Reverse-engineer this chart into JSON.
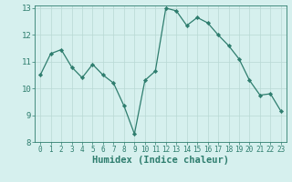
{
  "x": [
    0,
    1,
    2,
    3,
    4,
    5,
    6,
    7,
    8,
    9,
    10,
    11,
    12,
    13,
    14,
    15,
    16,
    17,
    18,
    19,
    20,
    21,
    22,
    23
  ],
  "y": [
    10.5,
    11.3,
    11.45,
    10.8,
    10.4,
    10.9,
    10.5,
    10.2,
    9.35,
    8.3,
    10.3,
    10.65,
    13.0,
    12.9,
    12.35,
    12.65,
    12.45,
    12.0,
    11.6,
    11.1,
    10.3,
    9.75,
    9.8,
    9.15
  ],
  "line_color": "#2e7d6e",
  "marker": "D",
  "marker_size": 2.2,
  "bg_color": "#d6f0ee",
  "grid_major_color": "#b8d8d4",
  "grid_minor_color": "#cce8e4",
  "tick_color": "#2e7d6e",
  "spine_color": "#2e7d6e",
  "xlabel": "Humidex (Indice chaleur)",
  "xlabel_fontsize": 7.5,
  "tick_fontsize": 5.5,
  "ytick_fontsize": 6.5,
  "xlim": [
    -0.5,
    23.5
  ],
  "ylim": [
    8,
    13.1
  ],
  "yticks": [
    8,
    9,
    10,
    11,
    12,
    13
  ],
  "xticks": [
    0,
    1,
    2,
    3,
    4,
    5,
    6,
    7,
    8,
    9,
    10,
    11,
    12,
    13,
    14,
    15,
    16,
    17,
    18,
    19,
    20,
    21,
    22,
    23
  ]
}
